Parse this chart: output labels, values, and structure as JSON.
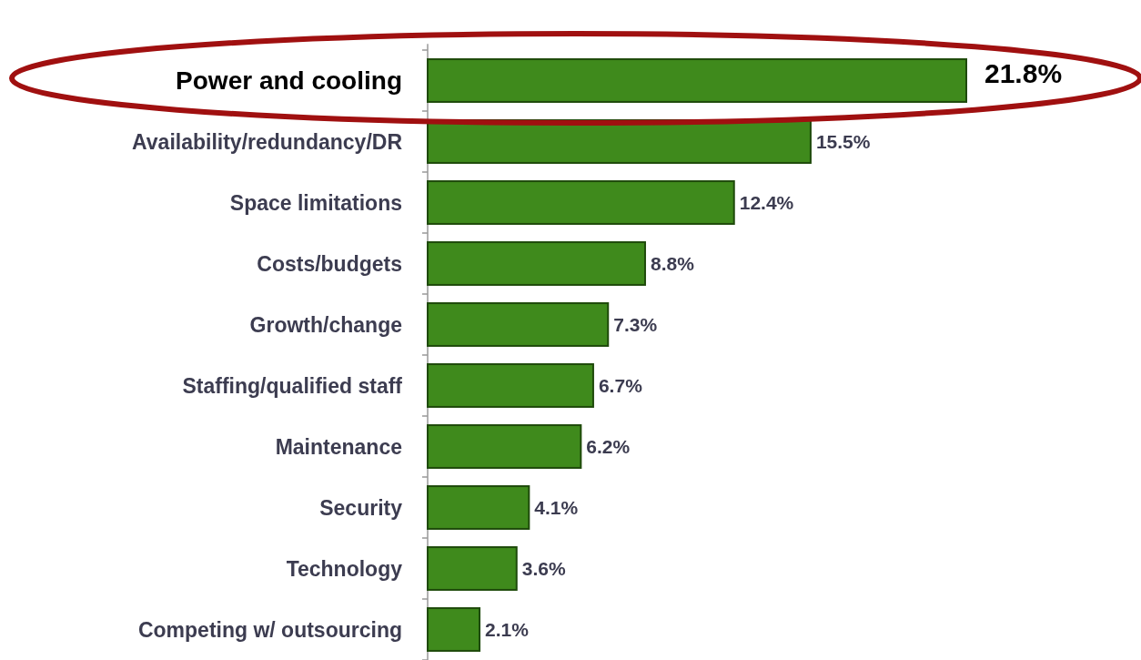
{
  "chart_data": {
    "type": "bar",
    "orientation": "horizontal",
    "categories": [
      "Power and cooling",
      "Availability/redundancy/DR",
      "Space limitations",
      "Costs/budgets",
      "Growth/change",
      "Staffing/qualified staff",
      "Maintenance",
      "Security",
      "Technology",
      "Competing w/ outsourcing"
    ],
    "values": [
      21.8,
      15.5,
      12.4,
      8.8,
      7.3,
      6.7,
      6.2,
      4.1,
      3.6,
      2.1
    ],
    "value_labels": [
      "21.8%",
      "15.5%",
      "12.4%",
      "8.8%",
      "7.3%",
      "6.7%",
      "6.2%",
      "4.1%",
      "3.6%",
      "2.1%"
    ],
    "color": "#3f8a1c"
  }
}
